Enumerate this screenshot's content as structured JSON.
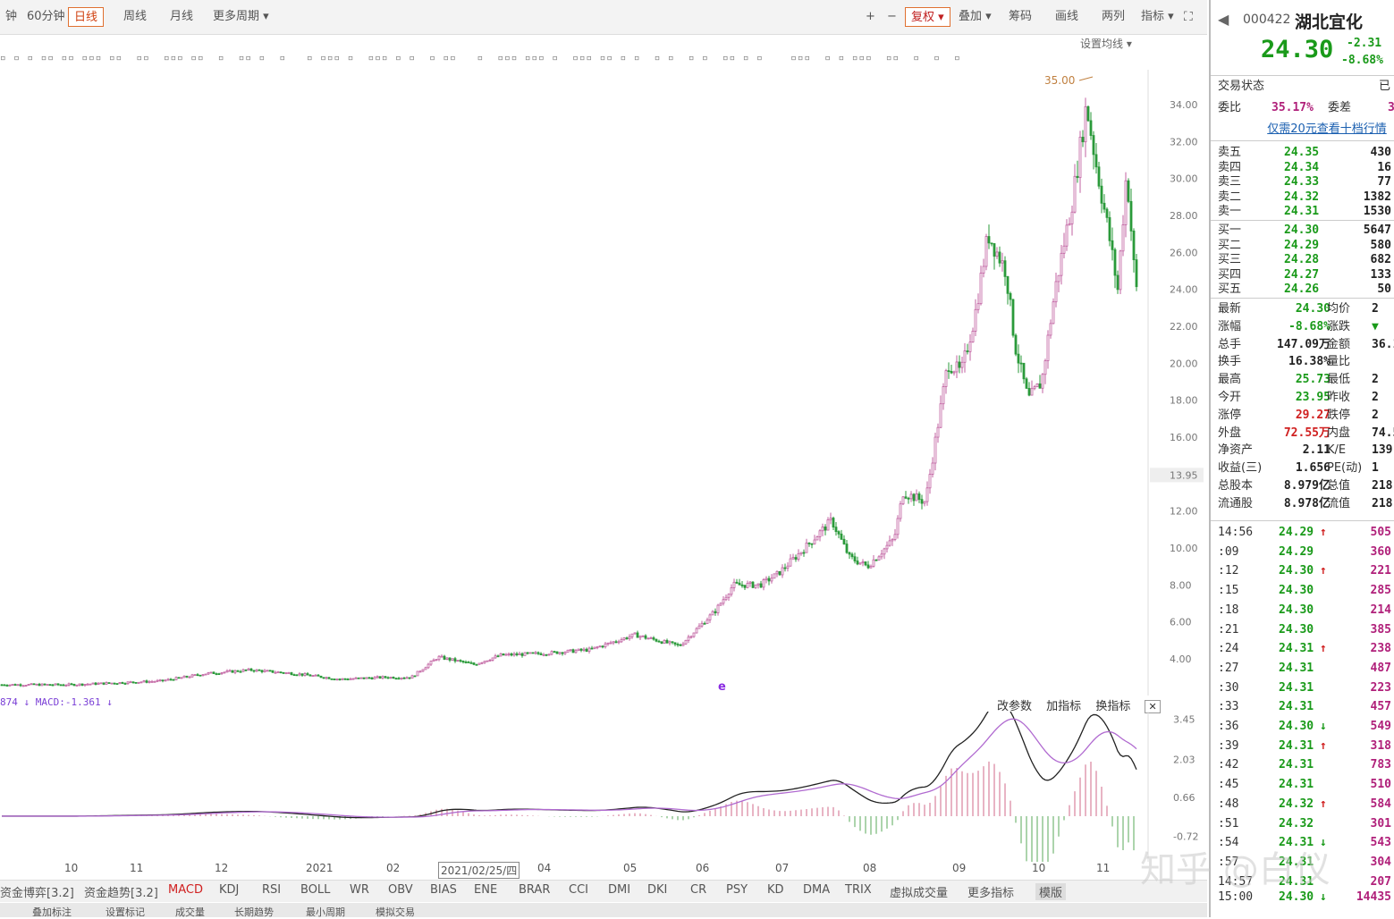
{
  "toolbar": {
    "left_items": [
      "钟",
      "60分钟",
      "日线",
      "周线",
      "月线",
      "更多周期 ▾"
    ],
    "right_items": [
      "+",
      "−",
      "复权 ▾",
      "叠加 ▾",
      "筹码",
      "画线",
      "两列",
      "指标 ▾"
    ],
    "set_line": "设置均线 ▾",
    "marker_strip": "▫ ▫ ▫ ▫▫ ▫▫ ▫▫▫ ▫▫  ▫▫  ▫▫▫ ▫▫  ▫  ▫▫ ▫  ▫   ▫ ▫▫▫ ▫  ▫▫▫ ▫ ▫  ▫ ▫▫   ▫  ▫▫▫ ▫▫▫ ▫  ▫▫▫ ▫▫ ▫ ▫  ▫ ▫  ▫ ▫  ▫▫ ▫ ▫    ▫▫▫  ▫ ▫ ▫▫▫  ▫▫  ▫  ▫  ▫"
  },
  "chart": {
    "peak_label": "35.00",
    "current_price_tag": "13.95",
    "e_marker": "e"
  },
  "chart_data": {
    "type": "candlestick",
    "y_ticks": [
      "34.00",
      "32.00",
      "30.00",
      "28.00",
      "26.00",
      "24.00",
      "22.00",
      "20.00",
      "18.00",
      "16.00",
      "13.95",
      "12.00",
      "10.00",
      "8.00",
      "6.00",
      "4.00"
    ],
    "ylim": [
      2.5,
      35.5
    ],
    "x_labels": [
      "10",
      "11",
      "12",
      "2021",
      "02",
      "2021/02/25/四",
      "04",
      "05",
      "06",
      "07",
      "08",
      "09",
      "10",
      "11"
    ],
    "price_points": [
      [
        0,
        2.6
      ],
      [
        80,
        2.6
      ],
      [
        180,
        2.8
      ],
      [
        230,
        3.2
      ],
      [
        280,
        3.4
      ],
      [
        330,
        3.2
      ],
      [
        380,
        2.9
      ],
      [
        430,
        3.0
      ],
      [
        460,
        3.0
      ],
      [
        490,
        4.1
      ],
      [
        530,
        3.7
      ],
      [
        560,
        4.2
      ],
      [
        610,
        4.3
      ],
      [
        660,
        4.5
      ],
      [
        710,
        5.3
      ],
      [
        760,
        4.7
      ],
      [
        800,
        6.6
      ],
      [
        820,
        8.0
      ],
      [
        850,
        8.0
      ],
      [
        870,
        8.6
      ],
      [
        900,
        10.0
      ],
      [
        930,
        11.5
      ],
      [
        950,
        9.5
      ],
      [
        970,
        9.0
      ],
      [
        1000,
        10.5
      ],
      [
        1010,
        13.0
      ],
      [
        1035,
        12.5
      ],
      [
        1050,
        17.0
      ],
      [
        1060,
        20.0
      ],
      [
        1075,
        19.5
      ],
      [
        1090,
        22.5
      ],
      [
        1105,
        27.0
      ],
      [
        1125,
        25.0
      ],
      [
        1135,
        21.0
      ],
      [
        1150,
        18.0
      ],
      [
        1165,
        19.0
      ],
      [
        1180,
        24.0
      ],
      [
        1200,
        29.0
      ],
      [
        1215,
        34.0
      ],
      [
        1225,
        31.0
      ],
      [
        1240,
        27.0
      ],
      [
        1250,
        24.0
      ],
      [
        1260,
        30.5
      ],
      [
        1270,
        24.0
      ]
    ],
    "macd": {
      "legend": "874 ↓ MACD:-1.361 ↓",
      "y_ticks": [
        "3.45",
        "2.03",
        "0.66",
        "-0.72"
      ],
      "ylim": [
        -1.5,
        3.6
      ]
    }
  },
  "macd_buttons": [
    "改参数",
    "加指标",
    "换指标"
  ],
  "indicator_tabs": [
    "资金博弈[3.2]",
    "资金趋势[3.2]",
    "MACD",
    "KDJ",
    "RSI",
    "BOLL",
    "WR",
    "OBV",
    "BIAS",
    "ENE",
    "BRAR",
    "CCI",
    "DMI",
    "DKI",
    "CR",
    "PSY",
    "KD",
    "DMA",
    "TRIX",
    "虚拟成交量",
    "更多指标",
    "模版"
  ],
  "bottom_tabs": [
    "叠加标注",
    "设置标记",
    "成交量",
    "长期趋势",
    "最小周期",
    "模拟交易"
  ],
  "quote": {
    "code": "000422",
    "name": "湖北宜化",
    "price": "24.30",
    "change": "-2.31",
    "change_pct": "-8.68%",
    "trade_status_label": "交易状态",
    "trade_status_value": "已",
    "ratio_label": "委比",
    "ratio_value": "35.17%",
    "diff_label": "委差",
    "diff_value": "3",
    "link": "仅需20元查看十档行情",
    "asks": [
      {
        "label": "卖五",
        "price": "24.35",
        "vol": "430"
      },
      {
        "label": "卖四",
        "price": "24.34",
        "vol": "16"
      },
      {
        "label": "卖三",
        "price": "24.33",
        "vol": "77"
      },
      {
        "label": "卖二",
        "price": "24.32",
        "vol": "1382"
      },
      {
        "label": "卖一",
        "price": "24.31",
        "vol": "1530"
      }
    ],
    "bids": [
      {
        "label": "买一",
        "price": "24.30",
        "vol": "5647"
      },
      {
        "label": "买二",
        "price": "24.29",
        "vol": "580"
      },
      {
        "label": "买三",
        "price": "24.28",
        "vol": "682"
      },
      {
        "label": "买四",
        "price": "24.27",
        "vol": "133"
      },
      {
        "label": "买五",
        "price": "24.26",
        "vol": "50"
      }
    ],
    "stats": [
      {
        "l1": "最新",
        "v1": "24.30",
        "c1": "green",
        "l2": "均价",
        "v2": "2"
      },
      {
        "l1": "涨幅",
        "v1": "-8.68%",
        "c1": "green",
        "l2": "涨跌",
        "v2": "▼"
      },
      {
        "l1": "总手",
        "v1": "147.09万",
        "c1": "blk",
        "l2": "金额",
        "v2": "36.1"
      },
      {
        "l1": "换手",
        "v1": "16.38%",
        "c1": "blk",
        "l2": "量比",
        "v2": ""
      },
      {
        "l1": "最高",
        "v1": "25.73",
        "c1": "green",
        "l2": "最低",
        "v2": "2"
      },
      {
        "l1": "今开",
        "v1": "23.95",
        "c1": "green",
        "l2": "昨收",
        "v2": "2"
      },
      {
        "l1": "涨停",
        "v1": "29.27",
        "c1": "red",
        "l2": "跌停",
        "v2": "2"
      },
      {
        "l1": "外盘",
        "v1": "72.55万",
        "c1": "red",
        "l2": "内盘",
        "v2": "74.5"
      },
      {
        "l1": "净资产",
        "v1": "2.11",
        "c1": "blk",
        "l2": "K/E",
        "v2": "139."
      },
      {
        "l1": "收益(三)",
        "v1": "1.656",
        "c1": "blk",
        "l2": "PE(动)",
        "v2": "1"
      },
      {
        "l1": "总股本",
        "v1": "8.979亿",
        "c1": "blk",
        "l2": "总值",
        "v2": "218"
      },
      {
        "l1": "流通股",
        "v1": "8.978亿",
        "c1": "blk",
        "l2": "流值",
        "v2": "218"
      }
    ],
    "ticks": [
      {
        "t": "14:56",
        "p": "24.29",
        "a": "↑",
        "v": "505"
      },
      {
        "t": ":09",
        "p": "24.29",
        "a": "",
        "v": "360"
      },
      {
        "t": ":12",
        "p": "24.30",
        "a": "↑",
        "v": "221"
      },
      {
        "t": ":15",
        "p": "24.30",
        "a": "",
        "v": "285"
      },
      {
        "t": ":18",
        "p": "24.30",
        "a": "",
        "v": "214"
      },
      {
        "t": ":21",
        "p": "24.30",
        "a": "",
        "v": "385"
      },
      {
        "t": ":24",
        "p": "24.31",
        "a": "↑",
        "v": "238"
      },
      {
        "t": ":27",
        "p": "24.31",
        "a": "",
        "v": "487"
      },
      {
        "t": ":30",
        "p": "24.31",
        "a": "",
        "v": "223"
      },
      {
        "t": ":33",
        "p": "24.31",
        "a": "",
        "v": "457"
      },
      {
        "t": ":36",
        "p": "24.30",
        "a": "↓",
        "v": "549"
      },
      {
        "t": ":39",
        "p": "24.31",
        "a": "↑",
        "v": "318"
      },
      {
        "t": ":42",
        "p": "24.31",
        "a": "",
        "v": "783"
      },
      {
        "t": ":45",
        "p": "24.31",
        "a": "",
        "v": "510"
      },
      {
        "t": ":48",
        "p": "24.32",
        "a": "↑",
        "v": "584"
      },
      {
        "t": ":51",
        "p": "24.32",
        "a": "",
        "v": "301"
      },
      {
        "t": ":54",
        "p": "24.31",
        "a": "↓",
        "v": "543"
      },
      {
        "t": ":57",
        "p": "24.31",
        "a": "",
        "v": "304"
      },
      {
        "t": "14:57",
        "p": "24.31",
        "a": "",
        "v": "207"
      },
      {
        "t": "15:00",
        "p": "24.30",
        "a": "↓",
        "v": "14435"
      }
    ]
  },
  "watermark": "知乎 @白仪"
}
